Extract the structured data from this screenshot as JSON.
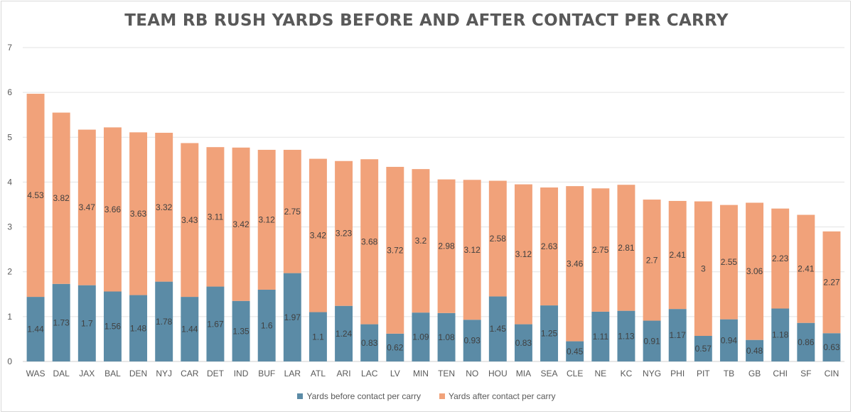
{
  "chart_data": {
    "type": "bar",
    "stacked": true,
    "title": "TEAM RB RUSH YARDS BEFORE AND AFTER CONTACT PER CARRY",
    "xlabel": "",
    "ylabel": "",
    "ylim": [
      0,
      7
    ],
    "yticks": [
      "0",
      "1",
      "2",
      "3",
      "4",
      "5",
      "6",
      "7"
    ],
    "grid": true,
    "legend_position": "bottom",
    "categories": [
      "WAS",
      "DAL",
      "JAX",
      "BAL",
      "DEN",
      "NYJ",
      "CAR",
      "DET",
      "IND",
      "BUF",
      "LAR",
      "ATL",
      "ARI",
      "LAC",
      "LV",
      "MIN",
      "TEN",
      "NO",
      "HOU",
      "MIA",
      "SEA",
      "CLE",
      "NE",
      "KC",
      "NYG",
      "PHI",
      "PIT",
      "TB",
      "GB",
      "CHI",
      "SF",
      "CIN"
    ],
    "series": [
      {
        "name": "Yards before contact per carry",
        "color": "#5b8ba6",
        "values": [
          1.44,
          1.73,
          1.7,
          1.56,
          1.48,
          1.78,
          1.44,
          1.67,
          1.35,
          1.6,
          1.97,
          1.1,
          1.24,
          0.83,
          0.62,
          1.09,
          1.08,
          0.93,
          1.45,
          0.83,
          1.25,
          0.45,
          1.11,
          1.13,
          0.91,
          1.17,
          0.57,
          0.94,
          0.48,
          1.18,
          0.86,
          0.63
        ],
        "labels": [
          "1.44",
          "1.73",
          "1.7",
          "1.56",
          "1.48",
          "1.78",
          "1.44",
          "1.67",
          "1.35",
          "1.6",
          "1.97",
          "1.1",
          "1.24",
          "0.83",
          "0.62",
          "1.09",
          "1.08",
          "0.93",
          "1.45",
          "0.83",
          "1.25",
          "0.45",
          "1.11",
          "1.13",
          "0.91",
          "1.17",
          "0.57",
          "0.94",
          "0.48",
          "1.18",
          "0.86",
          "0.63"
        ]
      },
      {
        "name": "Yards after contact per carry",
        "color": "#f1a27a",
        "values": [
          4.53,
          3.82,
          3.47,
          3.66,
          3.63,
          3.32,
          3.43,
          3.11,
          3.42,
          3.12,
          2.75,
          3.42,
          3.23,
          3.68,
          3.72,
          3.2,
          2.98,
          3.12,
          2.58,
          3.12,
          2.63,
          3.46,
          2.75,
          2.81,
          2.7,
          2.41,
          3,
          2.55,
          3.06,
          2.23,
          2.41,
          2.27
        ],
        "labels": [
          "4.53",
          "3.82",
          "3.47",
          "3.66",
          "3.63",
          "3.32",
          "3.43",
          "3.11",
          "3.42",
          "3.12",
          "2.75",
          "3.42",
          "3.23",
          "3.68",
          "3.72",
          "3.2",
          "2.98",
          "3.12",
          "2.58",
          "3.12",
          "2.63",
          "3.46",
          "2.75",
          "2.81",
          "2.7",
          "2.41",
          "3",
          "2.55",
          "3.06",
          "2.23",
          "2.41",
          "2.27"
        ]
      }
    ]
  },
  "colors": {
    "gridline": "#e3e3e3",
    "axis_line": "#d0d0d0",
    "label_text": "#404040",
    "tick_text": "#595959"
  }
}
